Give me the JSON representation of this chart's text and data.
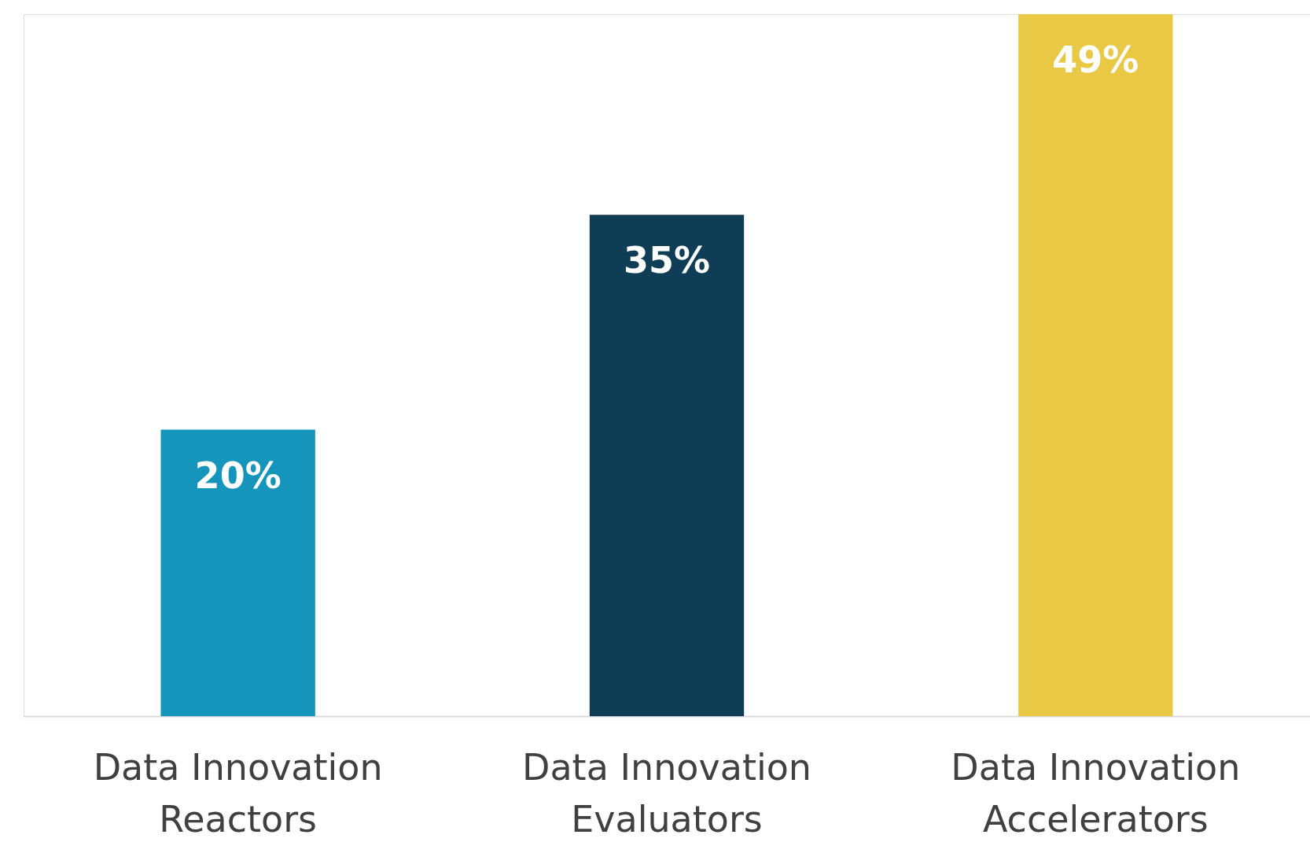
{
  "chart_data": {
    "type": "bar",
    "categories": [
      "Data Innovation Reactors",
      "Data Innovation Evaluators",
      "Data Innovation Accelerators"
    ],
    "values": [
      20,
      35,
      49
    ],
    "colors": [
      "#1595bb",
      "#0f3d55",
      "#e9c846"
    ],
    "value_labels": [
      "20%",
      "35%",
      "49%"
    ],
    "grid": false,
    "legend": false
  }
}
